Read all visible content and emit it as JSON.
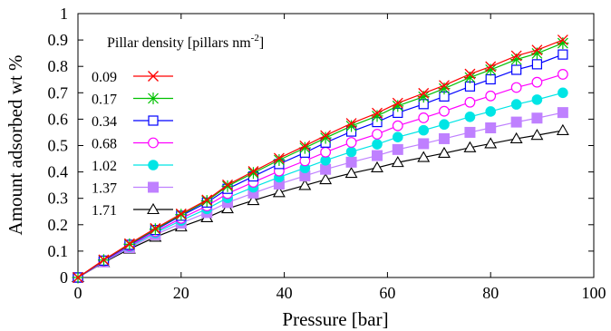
{
  "chart_data": {
    "type": "line",
    "title": "",
    "xlabel": "Pressure [bar]",
    "ylabel": "Amount adsorbed wt %",
    "xlim": [
      0,
      100
    ],
    "ylim": [
      0,
      1
    ],
    "x_ticks": [
      "0",
      "20",
      "40",
      "60",
      "80",
      "100"
    ],
    "y_ticks": [
      "0",
      "0.1",
      "0.2",
      "0.3",
      "0.4",
      "0.5",
      "0.6",
      "0.7",
      "0.8",
      "0.9",
      "1"
    ],
    "grid": false,
    "legend": {
      "title_main": "Pillar density [pillars nm",
      "title_sup": "-2",
      "title_end": "]",
      "placement": "top-left"
    },
    "x": [
      0,
      5,
      10,
      15,
      20,
      25,
      29,
      34,
      39,
      44,
      48,
      53,
      58,
      62,
      67,
      71,
      76,
      80,
      85,
      89,
      94
    ],
    "series": [
      {
        "name": "0.09",
        "color": "#ff0000",
        "marker": "x",
        "values": [
          0,
          0.067,
          0.128,
          0.186,
          0.241,
          0.294,
          0.351,
          0.402,
          0.452,
          0.499,
          0.538,
          0.584,
          0.623,
          0.661,
          0.698,
          0.728,
          0.771,
          0.799,
          0.84,
          0.862,
          0.9
        ]
      },
      {
        "name": "0.17",
        "color": "#00c000",
        "marker": "asterisk",
        "values": [
          0,
          0.066,
          0.126,
          0.183,
          0.238,
          0.29,
          0.346,
          0.396,
          0.445,
          0.491,
          0.529,
          0.574,
          0.612,
          0.65,
          0.685,
          0.716,
          0.758,
          0.787,
          0.826,
          0.849,
          0.888
        ]
      },
      {
        "name": "0.34",
        "color": "#0000ff",
        "marker": "square",
        "values": [
          0,
          0.064,
          0.124,
          0.18,
          0.234,
          0.284,
          0.336,
          0.383,
          0.43,
          0.473,
          0.511,
          0.553,
          0.589,
          0.624,
          0.657,
          0.686,
          0.724,
          0.751,
          0.787,
          0.808,
          0.845
        ]
      },
      {
        "name": "0.68",
        "color": "#ff00ff",
        "marker": "circle",
        "values": [
          0,
          0.062,
          0.12,
          0.174,
          0.224,
          0.271,
          0.318,
          0.361,
          0.403,
          0.442,
          0.475,
          0.512,
          0.543,
          0.575,
          0.605,
          0.63,
          0.664,
          0.688,
          0.72,
          0.74,
          0.77
        ]
      },
      {
        "name": "1.02",
        "color": "#00e5e5",
        "marker": "filled-circle",
        "values": [
          0,
          0.061,
          0.117,
          0.169,
          0.216,
          0.26,
          0.302,
          0.342,
          0.38,
          0.415,
          0.444,
          0.476,
          0.505,
          0.532,
          0.558,
          0.58,
          0.609,
          0.629,
          0.656,
          0.674,
          0.7
        ]
      },
      {
        "name": "1.37",
        "color": "#bf80ff",
        "marker": "filled-square",
        "values": [
          0,
          0.059,
          0.113,
          0.162,
          0.206,
          0.246,
          0.284,
          0.32,
          0.354,
          0.385,
          0.41,
          0.437,
          0.462,
          0.485,
          0.507,
          0.526,
          0.55,
          0.567,
          0.589,
          0.604,
          0.625
        ]
      },
      {
        "name": "1.71",
        "color": "#000000",
        "marker": "triangle",
        "values": [
          0,
          0.057,
          0.108,
          0.153,
          0.192,
          0.227,
          0.261,
          0.292,
          0.322,
          0.349,
          0.371,
          0.395,
          0.416,
          0.436,
          0.455,
          0.471,
          0.492,
          0.507,
          0.526,
          0.539,
          0.557
        ]
      }
    ]
  }
}
